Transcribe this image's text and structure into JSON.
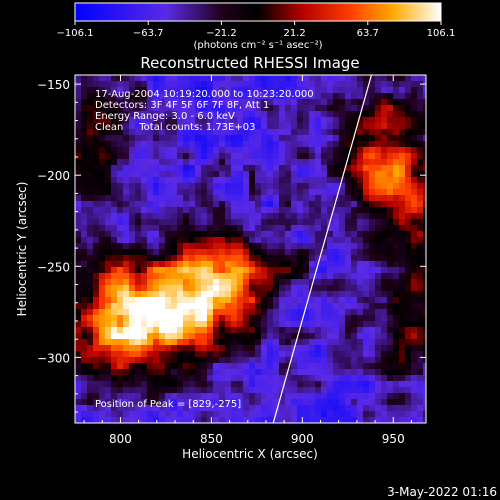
{
  "chart_data": {
    "type": "heatmap",
    "title": "Reconstructed RHESSI Image",
    "xlabel": "Heliocentric X (arcsec)",
    "ylabel": "Heliocentric Y (arcsec)",
    "xlim": [
      775,
      968
    ],
    "ylim": [
      -336,
      -145
    ],
    "xticks": [
      800,
      850,
      900,
      950
    ],
    "yticks": [
      -150,
      -200,
      -250,
      -300
    ],
    "colorbar": {
      "range": [
        -106.1,
        106.1
      ],
      "tick_labels": [
        "-106.1",
        "-63.7",
        "-21.2",
        "21.2",
        "63.7",
        "106.1"
      ],
      "unit_label": "(photons cm⁻² s⁻¹ asec⁻²)"
    },
    "annotations": [
      "17-Aug-2004 10:19:20.000 to 10:23:20.000",
      "Detectors: 3F 4F 5F 6F 7F 8F, Att 1",
      "Energy Range: 3.0 - 6.0 keV",
      "Clean     Total counts: 1.73E+03"
    ],
    "peak_label": "Position of Peak = [829,-275]",
    "peak_position": [
      829,
      -275
    ],
    "limb_line": [
      [
        884,
        -336
      ],
      [
        938,
        -145
      ]
    ],
    "sources": [
      {
        "x": 832,
        "y": -273,
        "amp": 106,
        "sx": 30,
        "sy": 20
      },
      {
        "x": 800,
        "y": -283,
        "amp": 70,
        "sx": 22,
        "sy": 22
      },
      {
        "x": 862,
        "y": -252,
        "amp": 55,
        "sx": 22,
        "sy": 14
      },
      {
        "x": 942,
        "y": -185,
        "amp": 70,
        "sx": 18,
        "sy": 26
      },
      {
        "x": 960,
        "y": -215,
        "amp": 48,
        "sx": 14,
        "sy": 16
      },
      {
        "x": 782,
        "y": -195,
        "amp": 35,
        "sx": 14,
        "sy": 22
      },
      {
        "x": 960,
        "y": -280,
        "amp": 42,
        "sx": 14,
        "sy": 28
      },
      {
        "x": 790,
        "y": -158,
        "amp": 20,
        "sx": 18,
        "sy": 10
      }
    ],
    "background_level": -58,
    "colormap": "std-gamma-II (blue-purple-red-orange-yellow-white)"
  },
  "footer_date": "3-May-2022 01:16"
}
